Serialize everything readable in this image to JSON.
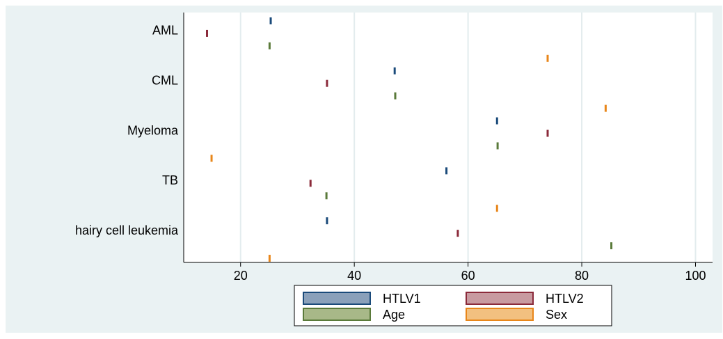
{
  "chart_data": {
    "type": "scatter",
    "title": "",
    "xlabel": "",
    "ylabel": "",
    "xlim": [
      10,
      103
    ],
    "xticks": [
      20,
      40,
      60,
      80,
      100
    ],
    "xtick_labels": [
      "20",
      "40",
      "60",
      "80",
      "100"
    ],
    "grid": true,
    "legend_position": "bottom",
    "categories": [
      "AML",
      "CML",
      "Myeloma",
      "TB",
      "hairy cell leukemia"
    ],
    "series": [
      {
        "name": "HTLV1",
        "color": "#1a4a7a",
        "fill": "#8aa0ba",
        "values": [
          25.3,
          47.1,
          65.1,
          56.2,
          35.2
        ]
      },
      {
        "name": "HTLV2",
        "color": "#8b2a3a",
        "fill": "#c89aa0",
        "values": [
          14.1,
          35.2,
          74.0,
          32.3,
          58.2
        ]
      },
      {
        "name": "Age",
        "color": "#5a7a3a",
        "fill": "#a8b888",
        "values": [
          25.1,
          47.2,
          65.2,
          35.1,
          85.2
        ]
      },
      {
        "name": "Sex",
        "color": "#e8861a",
        "fill": "#f2c080",
        "values": [
          74.0,
          84.2,
          14.9,
          65.1,
          25.1
        ]
      }
    ]
  }
}
